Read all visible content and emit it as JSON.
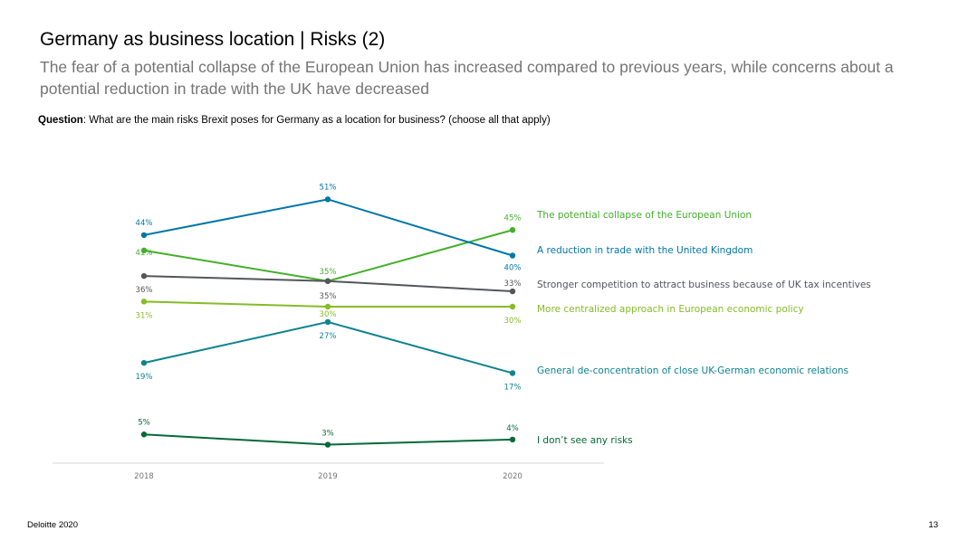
{
  "header": {
    "title": "Germany as business location | Risks (2)",
    "subtitle": "The fear of a potential collapse of the European Union has increased compared to previous years, while concerns about a potential reduction in trade with the UK have decreased"
  },
  "question": {
    "label": "Question",
    "text": ": What are the main risks Brexit poses for Germany as a location for business? (choose all that apply)"
  },
  "footer": {
    "source": "Deloitte 2020",
    "page_number": "13"
  },
  "chart_data": {
    "type": "line",
    "x": [
      "2018",
      "2019",
      "2020"
    ],
    "value_suffix": "%",
    "ylim": [
      0,
      55
    ],
    "grid": false,
    "legend": "right",
    "series": [
      {
        "name": "The potential collapse of the European Union",
        "values": [
          41,
          35,
          45
        ],
        "color": "#43b02a"
      },
      {
        "name": "A reduction in trade with the United Kingdom",
        "values": [
          44,
          51,
          40
        ],
        "color": "#0076a8"
      },
      {
        "name": "Stronger competition to attract business because of UK tax incentives",
        "values": [
          36,
          35,
          33
        ],
        "color": "#53565a"
      },
      {
        "name": "More centralized approach in European economic policy",
        "values": [
          31,
          30,
          30
        ],
        "color": "#86bc25"
      },
      {
        "name": "General de-concentration of close UK-German economic relations",
        "values": [
          19,
          27,
          17
        ],
        "color": "#0d8390"
      },
      {
        "name": "I don’t see any risks",
        "values": [
          5,
          3,
          4
        ],
        "color": "#046a38"
      }
    ]
  }
}
